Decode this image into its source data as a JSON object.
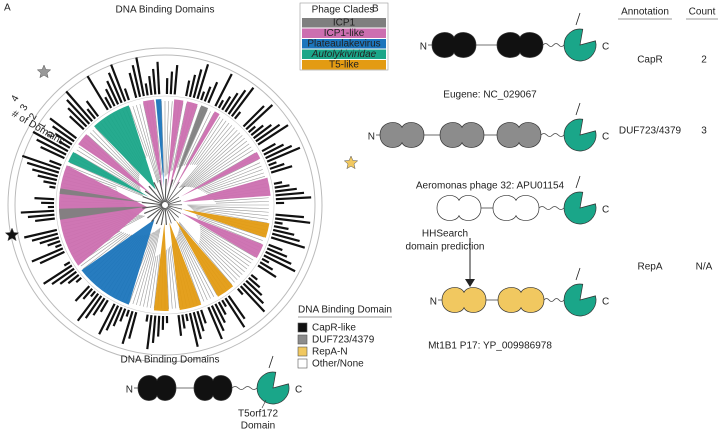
{
  "panel_a": {
    "label": "A",
    "title": "DNA Binding Domains",
    "axis_label": "# of Domains",
    "axis_ticks": [
      "4",
      "3",
      "2",
      "1",
      "0"
    ],
    "clade_legend": {
      "title": "Phage Clades",
      "items": [
        {
          "label": "ICP1",
          "color": "#7f7f7f",
          "italic": false
        },
        {
          "label": "ICP1-like",
          "color": "#cc6fb0",
          "italic": false
        },
        {
          "label": "Plateaulakevirus",
          "color": "#1b75bc",
          "italic": false
        },
        {
          "label": "Autolykiviridae",
          "color": "#1aa689",
          "italic": true
        },
        {
          "label": "T5-like",
          "color": "#e39b12",
          "italic": false
        }
      ]
    },
    "domain_legend": {
      "title": "DNA Binding Domain",
      "items": [
        {
          "label": "CapR-like",
          "color": "#111111"
        },
        {
          "label": "DUF723/4379",
          "color": "#8c8c8c"
        },
        {
          "label": "RepA-N",
          "color": "#f1c860"
        },
        {
          "label": "Other/None",
          "color": "#ffffff"
        }
      ]
    },
    "schematic": {
      "title": "DNA Binding Domains",
      "n": "N",
      "c": "C",
      "color": "#111111",
      "domain_label": [
        "T5orf172",
        "Domain"
      ]
    }
  },
  "panel_b": {
    "label": "B",
    "headers": [
      "Annotation",
      "Count"
    ],
    "constructs": [
      {
        "name": "Eugene: NC_029067",
        "n": "N",
        "c": "C",
        "color": "#111111",
        "annotation": "CapR",
        "count": 2
      },
      {
        "name": "Aeromonas phage 32: APU01154",
        "n": "N",
        "c": "C",
        "color": "#8c8c8c",
        "annotation": "DUF723/4379",
        "count": 3
      },
      {
        "c": "C",
        "color": "#ffffff"
      },
      {
        "name": "Mt1B1 P17: YP_009986978",
        "n": "N",
        "c": "C",
        "color": "#f1c860",
        "annotation": "RepA",
        "count": "N/A"
      }
    ],
    "prediction": [
      "HHSearch",
      "domain prediction"
    ]
  }
}
